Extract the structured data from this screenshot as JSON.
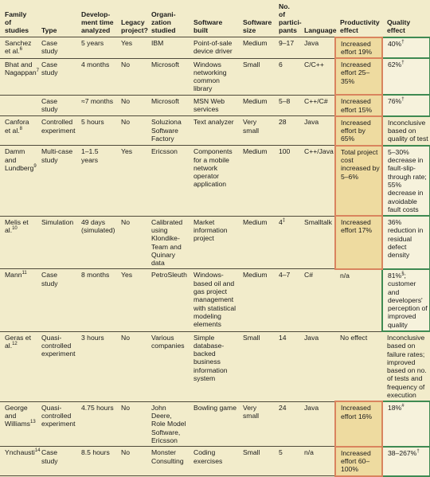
{
  "headers": [
    "Family of studies",
    "Type",
    "Development time analyzed",
    "Legacy project?",
    "Organization studied",
    "Software built",
    "Software size",
    "No. of participants",
    "Language",
    "Productivity effect",
    "Quality effect"
  ],
  "header_lines": [
    [
      "Family",
      "of studies"
    ],
    [
      "Type"
    ],
    [
      "Develop-",
      "ment time",
      "analyzed"
    ],
    [
      "Legacy",
      "project?"
    ],
    [
      "Organi-",
      "zation",
      "studied"
    ],
    [
      "Software",
      "built"
    ],
    [
      "Software",
      "size"
    ],
    [
      "No. of",
      "partici-",
      "pants"
    ],
    [
      "Language"
    ],
    [
      "Productivity",
      "effect"
    ],
    [
      "Quality",
      "effect"
    ]
  ],
  "rows": [
    {
      "family": "Sanchez et al.",
      "ref": "6",
      "type": "Case study",
      "time": "5 years",
      "legacy": "Yes",
      "org": "IBM",
      "software": "Point-of-sale device driver",
      "size": "Medium",
      "participants": "9–17",
      "language": "Java",
      "productivity": "Increased effort 19%",
      "quality": "40%",
      "quality_mark": "†",
      "prod_hl": true,
      "qual_hl": true
    },
    {
      "family": "Bhat and Nagappan",
      "ref": "7",
      "type": "Case study",
      "time": "4 months",
      "legacy": "No",
      "org": "Microsoft",
      "software": "Windows networking common library",
      "size": "Small",
      "participants": "6",
      "language": "C/C++",
      "productivity": "Increased effort 25–35%",
      "quality": "62%",
      "quality_mark": "†",
      "prod_hl": true,
      "qual_hl": true
    },
    {
      "family": "",
      "ref": "",
      "type": "Case study",
      "time": "≈7 months",
      "legacy": "No",
      "org": "Microsoft",
      "software": "MSN Web services",
      "size": "Medium",
      "participants": "5–8",
      "language": "C++/C#",
      "productivity": "Increased effort 15%",
      "quality": "76%",
      "quality_mark": "†",
      "prod_hl": true,
      "qual_hl": true
    },
    {
      "family": "Canfora et al.",
      "ref": "8",
      "type": "Controlled experiment",
      "time": "5 hours",
      "legacy": "No",
      "org": "Soluziona Software Factory",
      "software": "Text analyzer",
      "size": "Very small",
      "participants": "28",
      "language": "Java",
      "productivity": "Increased effort by 65%",
      "quality": "Inconclusive based on quality of test",
      "quality_mark": "",
      "prod_hl": true,
      "qual_hl": false
    },
    {
      "family": "Damm and Lundberg",
      "ref": "9",
      "type": "Multi-case study",
      "time": "1–1.5 years",
      "legacy": "Yes",
      "org": "Ericsson",
      "software": "Components for a mobile network operator application",
      "size": "Medium",
      "participants": "100",
      "language": "C++/Java",
      "productivity": "Total project cost increased by 5–6%",
      "quality": "5–30% decrease in fault-slip-through rate; 55% decrease in avoidable fault costs",
      "quality_mark": "",
      "prod_hl": true,
      "qual_hl": true
    },
    {
      "family": "Melis et al.",
      "ref": "10",
      "type": "Simulation",
      "time": "49 days (simulated)",
      "legacy": "No",
      "org": "Calibrated using Klondike-Team and Quinary data",
      "software": "Market information project",
      "size": "Medium",
      "participants": "4",
      "participants_mark": "‡",
      "language": "Smalltalk",
      "productivity": "Increased effort 17%",
      "quality": "36% reduction in residual defect density",
      "quality_mark": "",
      "prod_hl": true,
      "qual_hl": true
    },
    {
      "family": "Mann",
      "ref": "11",
      "type": "Case study",
      "time": "8 months",
      "legacy": "Yes",
      "org": "PetroSleuth",
      "software": "Windows-based oil and gas project management with statistical modeling elements",
      "size": "Medium",
      "participants": "4–7",
      "language": "C#",
      "productivity": "n/a",
      "quality": "81%",
      "quality_mark": "§",
      "quality_after": "; customer and developers' perception of improved quality",
      "prod_hl": false,
      "qual_hl": true
    },
    {
      "family": "Geras et al.",
      "ref": "12",
      "type": "Quasi-controlled experiment",
      "time": "3 hours",
      "legacy": "No",
      "org": "Various companies",
      "software": "Simple database-backed business information system",
      "size": "Small",
      "participants": "14",
      "language": "Java",
      "productivity": "No effect",
      "quality": "Inconclusive based on failure rates; improved based on no. of tests and frequency of execution",
      "quality_mark": "",
      "prod_hl": false,
      "qual_hl": false
    },
    {
      "family": "George and Williams",
      "ref": "13",
      "type": "Quasi-controlled experiment",
      "time": "4.75 hours",
      "legacy": "No",
      "org": "John Deere, Role Model Software, Ericsson",
      "software": "Bowling game",
      "size": "Very small",
      "participants": "24",
      "language": "Java",
      "productivity": "Increased effort 16%",
      "quality": "18%",
      "quality_mark": "#",
      "prod_hl": true,
      "qual_hl": true
    },
    {
      "family": "Ynchausti",
      "ref": "14",
      "type": "Case study",
      "time": "8.5 hours",
      "legacy": "No",
      "org": "Monster Consulting",
      "software": "Coding exercises",
      "size": "Small",
      "participants": "5",
      "language": "n/a",
      "productivity": "Increased effort 60–100%",
      "quality": "38–267%",
      "quality_mark": "†",
      "prod_hl": true,
      "qual_hl": true
    }
  ]
}
